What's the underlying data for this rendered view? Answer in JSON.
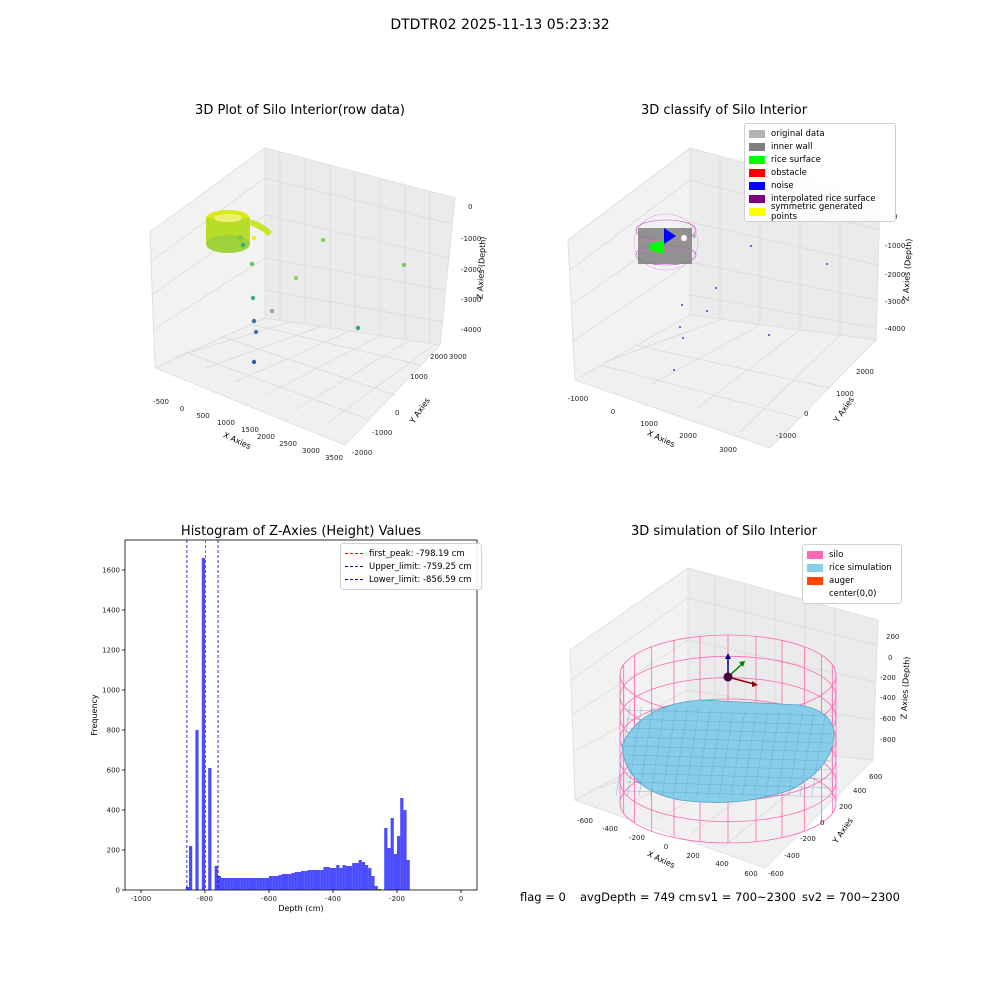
{
  "figure": {
    "suptitle": "DTDTR02 2025-11-13 05:23:32",
    "footer": {
      "flag": "flag = 0",
      "avg_depth": "avgDepth = 749 cm",
      "sv1": "sv1 = 700~2300",
      "sv2": "sv2 = 700~2300"
    }
  },
  "chart_data": [
    {
      "type": "scatter",
      "title": "3D Plot of Silo Interior(row data)",
      "xlabel": "X Axies",
      "ylabel": "Y Axies",
      "zlabel": "Z Axies (Depth)",
      "x_ticks": [
        "-500",
        "0",
        "500",
        "1000",
        "1500",
        "2000",
        "2500",
        "3000",
        "3500"
      ],
      "y_ticks": [
        "-2000",
        "-1000",
        "0",
        "1000",
        "2000",
        "3000"
      ],
      "z_ticks": [
        "0",
        "-1000",
        "-2000",
        "-3000",
        "-4000"
      ],
      "cluster": {
        "label": "ring of points near center",
        "colors": [
          "#d4e81a",
          "#a6d73b",
          "#7ccf4a"
        ]
      },
      "outliers": [
        {
          "color": "#f3e51e"
        },
        {
          "color": "#8ad244"
        },
        {
          "color": "#62c765"
        },
        {
          "color": "#79c95a"
        },
        {
          "color": "#8fd24a"
        },
        {
          "color": "#3aaf8a"
        },
        {
          "color": "#3e9a9e"
        },
        {
          "color": "#9aa0a8"
        },
        {
          "color": "#3f6ea8"
        },
        {
          "color": "#4d74b0"
        },
        {
          "color": "#3b5aa0"
        },
        {
          "color": "#2fb07f"
        }
      ]
    },
    {
      "type": "scatter",
      "title": "3D classify of Silo Interior",
      "xlabel": "X Axies",
      "ylabel": "Y Axies",
      "zlabel": "Z Axies (Depth)",
      "x_ticks": [
        "-1000",
        "0",
        "1000",
        "2000",
        "3000"
      ],
      "y_ticks": [
        "-1000",
        "0",
        "1000",
        "2000"
      ],
      "z_ticks": [
        "0",
        "-1000",
        "-2000",
        "-3000",
        "-4000"
      ],
      "legend": [
        {
          "label": "original data",
          "color": "#b3b3b3"
        },
        {
          "label": "inner wall",
          "color": "#808080"
        },
        {
          "label": "rice surface",
          "color": "#00ff00"
        },
        {
          "label": "obstacle",
          "color": "#ff0000"
        },
        {
          "label": "noise",
          "color": "#0000ff"
        },
        {
          "label": "interpolated rice surface",
          "color": "#800080"
        },
        {
          "label": "symmetric generated points",
          "color": "#ffff00"
        }
      ],
      "legend_placement": "top-right"
    },
    {
      "type": "bar",
      "title": "Histogram of Z-Axies (Height) Values",
      "xlabel": "Depth (cm)",
      "ylabel": "Frequency",
      "xlim": [
        -1050,
        50
      ],
      "ylim": [
        0,
        1750
      ],
      "x_ticks": [
        -1000,
        -800,
        -600,
        -400,
        -200,
        0
      ],
      "y_ticks": [
        0,
        200,
        400,
        600,
        800,
        1000,
        1200,
        1400,
        1600
      ],
      "bin_width": 10,
      "bins": [
        {
          "x": -860,
          "y": 15
        },
        {
          "x": -850,
          "y": 220
        },
        {
          "x": -830,
          "y": 800
        },
        {
          "x": -810,
          "y": 1660
        },
        {
          "x": -790,
          "y": 610
        },
        {
          "x": -770,
          "y": 120
        },
        {
          "x": -760,
          "y": 70
        },
        {
          "x": -750,
          "y": 60
        },
        {
          "x": -740,
          "y": 60
        },
        {
          "x": -730,
          "y": 60
        },
        {
          "x": -720,
          "y": 60
        },
        {
          "x": -710,
          "y": 60
        },
        {
          "x": -700,
          "y": 60
        },
        {
          "x": -690,
          "y": 60
        },
        {
          "x": -680,
          "y": 60
        },
        {
          "x": -670,
          "y": 60
        },
        {
          "x": -660,
          "y": 60
        },
        {
          "x": -650,
          "y": 60
        },
        {
          "x": -640,
          "y": 60
        },
        {
          "x": -630,
          "y": 60
        },
        {
          "x": -620,
          "y": 60
        },
        {
          "x": -610,
          "y": 60
        },
        {
          "x": -600,
          "y": 70
        },
        {
          "x": -590,
          "y": 70
        },
        {
          "x": -580,
          "y": 70
        },
        {
          "x": -570,
          "y": 75
        },
        {
          "x": -560,
          "y": 80
        },
        {
          "x": -550,
          "y": 80
        },
        {
          "x": -540,
          "y": 80
        },
        {
          "x": -530,
          "y": 85
        },
        {
          "x": -520,
          "y": 90
        },
        {
          "x": -510,
          "y": 90
        },
        {
          "x": -500,
          "y": 95
        },
        {
          "x": -490,
          "y": 95
        },
        {
          "x": -480,
          "y": 100
        },
        {
          "x": -470,
          "y": 100
        },
        {
          "x": -460,
          "y": 100
        },
        {
          "x": -450,
          "y": 100
        },
        {
          "x": -440,
          "y": 100
        },
        {
          "x": -430,
          "y": 115
        },
        {
          "x": -420,
          "y": 115
        },
        {
          "x": -410,
          "y": 110
        },
        {
          "x": -400,
          "y": 110
        },
        {
          "x": -390,
          "y": 125
        },
        {
          "x": -380,
          "y": 110
        },
        {
          "x": -370,
          "y": 125
        },
        {
          "x": -360,
          "y": 120
        },
        {
          "x": -350,
          "y": 120
        },
        {
          "x": -340,
          "y": 135
        },
        {
          "x": -330,
          "y": 135
        },
        {
          "x": -320,
          "y": 150
        },
        {
          "x": -310,
          "y": 140
        },
        {
          "x": -300,
          "y": 125
        },
        {
          "x": -290,
          "y": 110
        },
        {
          "x": -280,
          "y": 70
        },
        {
          "x": -270,
          "y": 20
        },
        {
          "x": -260,
          "y": 5
        },
        {
          "x": -240,
          "y": 310
        },
        {
          "x": -230,
          "y": 210
        },
        {
          "x": -220,
          "y": 360
        },
        {
          "x": -210,
          "y": 180
        },
        {
          "x": -200,
          "y": 270
        },
        {
          "x": -190,
          "y": 460
        },
        {
          "x": -180,
          "y": 400
        },
        {
          "x": -170,
          "y": 150
        }
      ],
      "vlines": [
        {
          "label": "first_peak: -798.19 cm",
          "x": -798.19,
          "color": "#ff0000"
        },
        {
          "label": "Upper_limit: -759.25 cm",
          "x": -759.25,
          "color": "#0000aa"
        },
        {
          "label": "Lower_limit: -856.59 cm",
          "x": -856.59,
          "color": "#0000aa"
        }
      ],
      "legend_placement": "top-right"
    },
    {
      "type": "surface",
      "title": "3D simulation of Silo Interior",
      "xlabel": "X Axies",
      "ylabel": "Y Axies",
      "zlabel": "Z Axies (Depth)",
      "x_ticks": [
        "-600",
        "-400",
        "-200",
        "0",
        "200",
        "400",
        "600"
      ],
      "y_ticks": [
        "-600",
        "-400",
        "-200",
        "0",
        "200",
        "400",
        "600"
      ],
      "z_ticks": [
        "200",
        "0",
        "-200",
        "-400",
        "-600",
        "-800"
      ],
      "legend": [
        {
          "label": "silo",
          "color": "#ff69b4"
        },
        {
          "label": "rice simulation",
          "color": "#87ceeb"
        },
        {
          "label": "auger",
          "color": "#ff4500"
        },
        {
          "label": "center(0,0)",
          "color": ""
        }
      ],
      "legend_placement": "top-right"
    }
  ]
}
